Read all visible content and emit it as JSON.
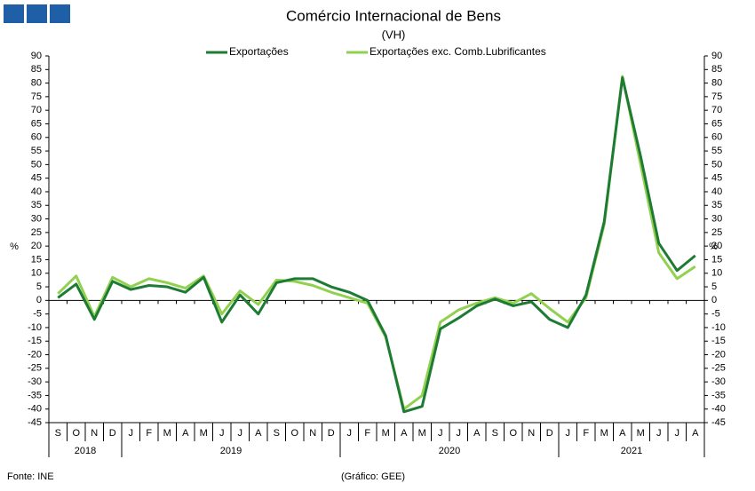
{
  "chart_data": {
    "type": "line",
    "title": "Comércio Internacional de Bens",
    "subtitle": "(VH)",
    "y_label": "%",
    "y2_label": "%",
    "source": "Fonte: INE",
    "credit": "(Gráfico: GEE)",
    "categories": [
      "S",
      "O",
      "N",
      "D",
      "J",
      "F",
      "M",
      "A",
      "M",
      "J",
      "J",
      "A",
      "S",
      "O",
      "N",
      "D",
      "J",
      "F",
      "M",
      "A",
      "M",
      "J",
      "J",
      "A",
      "S",
      "O",
      "N",
      "D",
      "J",
      "F",
      "M",
      "A",
      "M",
      "J",
      "J",
      "A"
    ],
    "year_groups": [
      {
        "label": "2018",
        "months": 4
      },
      {
        "label": "2019",
        "months": 12
      },
      {
        "label": "2020",
        "months": 12
      },
      {
        "label": "2021",
        "months": 8
      }
    ],
    "series": [
      {
        "name": "Exportações",
        "color": "#1e7b34",
        "values": [
          1,
          6,
          -7,
          7,
          4,
          5.5,
          5,
          3,
          8.5,
          -8,
          2,
          -5,
          6.5,
          8,
          8,
          5,
          3,
          0,
          -13,
          -41,
          -39,
          -10.5,
          -6.5,
          -2,
          0.5,
          -2,
          -0.5,
          -7,
          -10,
          2,
          29,
          82,
          53,
          21,
          11,
          16.5
        ]
      },
      {
        "name": "Exportações exc. Comb.Lubrificantes",
        "color": "#92d050",
        "values": [
          2.5,
          9,
          -6,
          8.5,
          5,
          8,
          6.5,
          4.5,
          9,
          -5,
          3.5,
          -1.5,
          7.5,
          7,
          5.5,
          3,
          1,
          -1,
          -13.5,
          -40,
          -35,
          -8,
          -3.5,
          -1,
          1,
          -1,
          2.5,
          -3,
          -8,
          1,
          28,
          82.5,
          50,
          17.5,
          8,
          12.5
        ]
      }
    ],
    "ylim": [
      -45,
      90
    ],
    "yticks": [
      -45,
      -40,
      -35,
      -30,
      -25,
      -20,
      -15,
      -10,
      -5,
      0,
      5,
      10,
      15,
      20,
      25,
      30,
      35,
      40,
      45,
      50,
      55,
      60,
      65,
      70,
      75,
      80,
      85,
      90
    ],
    "y2lim": [
      -45,
      90
    ],
    "y2ticks": [
      -45,
      -40,
      -35,
      -30,
      -25,
      -20,
      -15,
      -10,
      -5,
      0,
      5,
      10,
      15,
      20,
      25,
      30,
      35,
      40,
      45,
      50,
      55,
      60,
      65,
      70,
      75,
      80,
      85,
      90
    ],
    "legend": "top"
  }
}
